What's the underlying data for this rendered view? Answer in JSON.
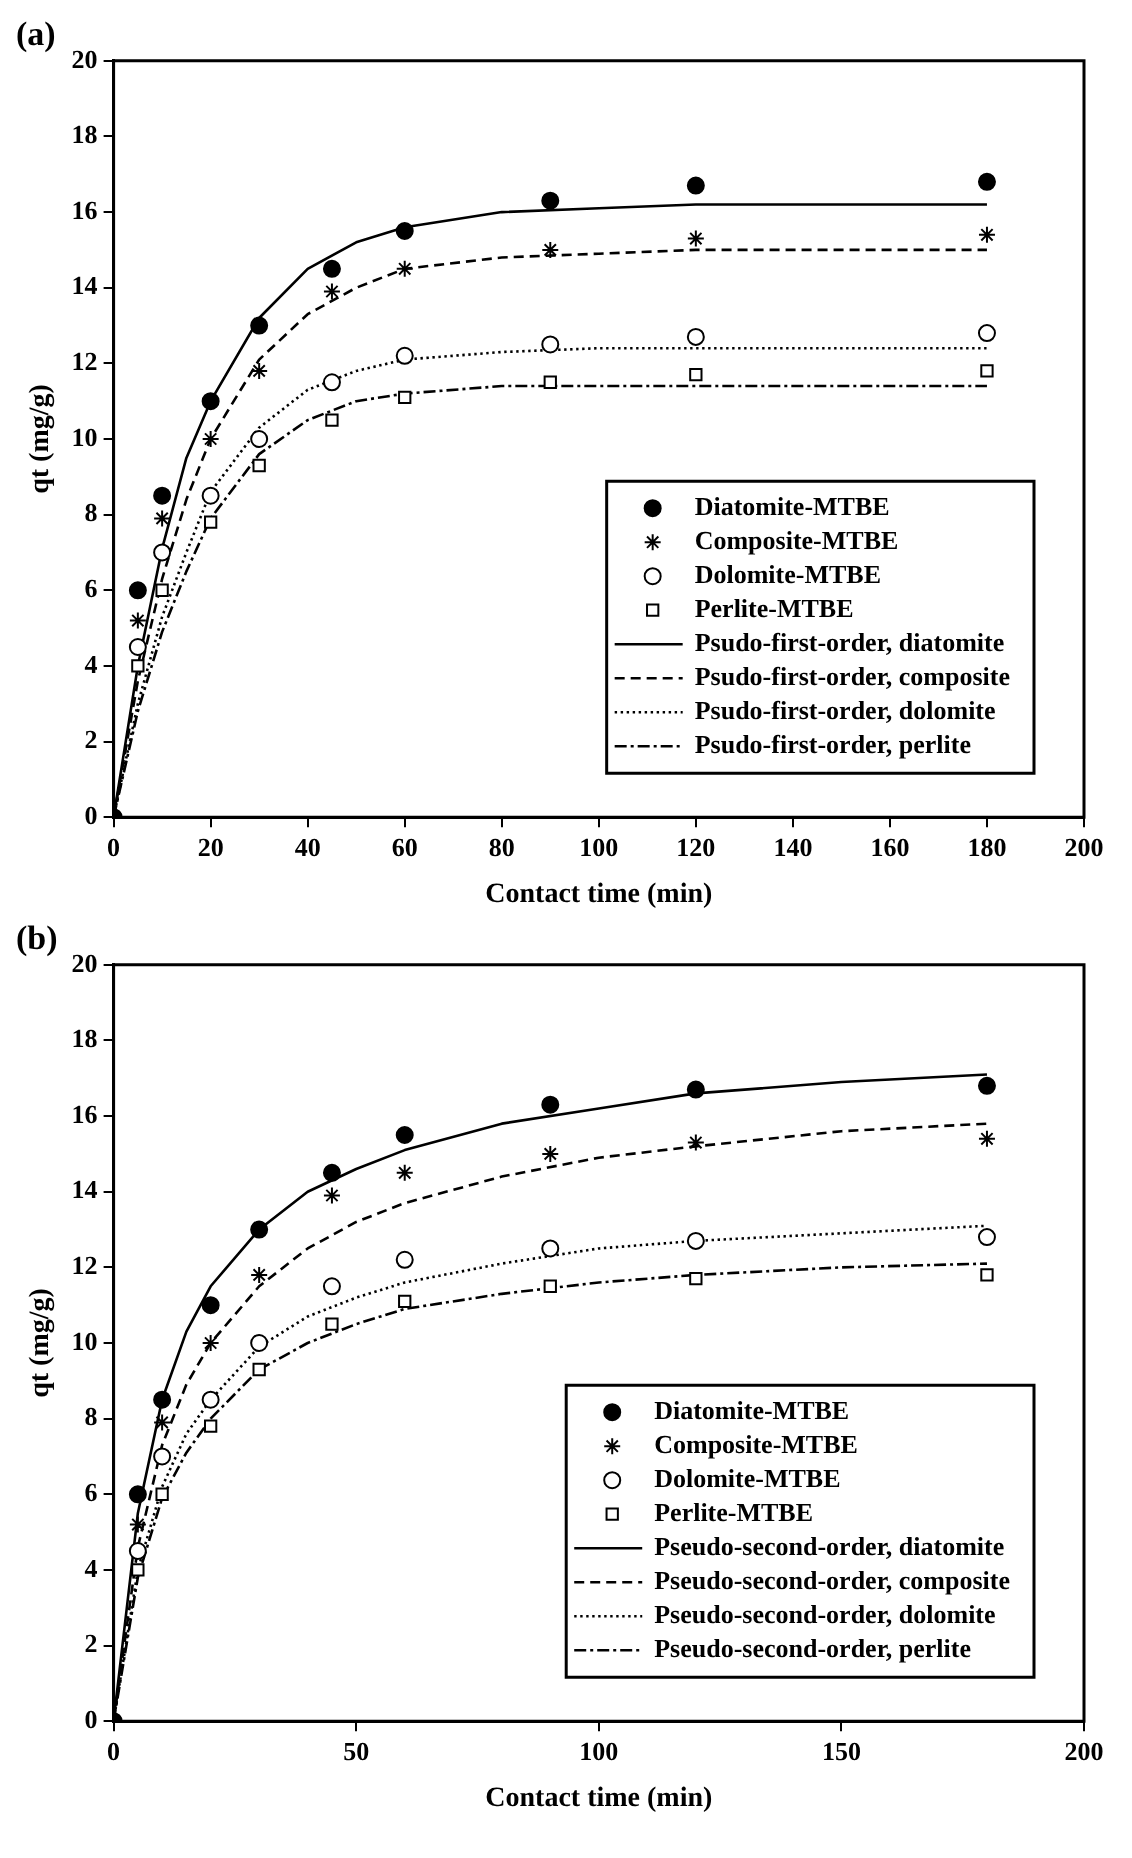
{
  "chart_data": [
    {
      "type": "line",
      "title": "(a)",
      "xlabel": "Contact time (min)",
      "ylabel": "qt (mg/g)",
      "xlim": [
        0,
        200
      ],
      "xticks": [
        0,
        20,
        40,
        60,
        80,
        100,
        120,
        140,
        160,
        180,
        200
      ],
      "ylim": [
        0,
        20
      ],
      "yticks": [
        0,
        2,
        4,
        6,
        8,
        10,
        12,
        14,
        16,
        18,
        20
      ],
      "grid": false,
      "legend": "bottom right",
      "series": [
        {
          "name": "Diatomite-MTBE",
          "type": "scatter",
          "marker": "circle",
          "color": "#000000",
          "x": [
            0,
            5,
            10,
            20,
            30,
            45,
            60,
            90,
            120,
            180
          ],
          "values": [
            0,
            6,
            8.5,
            11,
            13,
            14.5,
            15.5,
            16.3,
            16.7,
            16.8
          ]
        },
        {
          "name": "Composite-MTBE",
          "type": "scatter",
          "marker": "cross",
          "color": "#000000",
          "x": [
            5,
            10,
            20,
            30,
            45,
            60,
            90,
            120,
            180
          ],
          "values": [
            5.2,
            7.9,
            10,
            11.8,
            13.9,
            14.5,
            15,
            15.3,
            15.4
          ]
        },
        {
          "name": "Dolomite-MTBE",
          "type": "scatter",
          "marker": "circle",
          "color": "#000000",
          "x": [
            5,
            10,
            20,
            30,
            45,
            60,
            90,
            120,
            180
          ],
          "values": [
            4.5,
            7,
            8.5,
            10,
            11.5,
            12.2,
            12.5,
            12.7,
            12.8
          ]
        },
        {
          "name": "Perlite-MTBE",
          "type": "scatter",
          "marker": "square",
          "color": "#000000",
          "x": [
            5,
            10,
            20,
            30,
            45,
            60,
            90,
            120,
            180
          ],
          "values": [
            4,
            6,
            7.8,
            9.3,
            10.5,
            11.1,
            11.5,
            11.7,
            11.8
          ]
        },
        {
          "name": "Psudo-first-order, diatomite",
          "type": "line",
          "line_style": "solid",
          "color": "#000000",
          "x": [
            0,
            5,
            10,
            15,
            20,
            30,
            40,
            50,
            60,
            80,
            100,
            120,
            150,
            180
          ],
          "values": [
            0,
            4,
            7.1,
            9.5,
            11,
            13.2,
            14.5,
            15.2,
            15.6,
            16,
            16.1,
            16.2,
            16.2,
            16.2
          ]
        },
        {
          "name": "Psudo-first-order, composite",
          "type": "line",
          "line_style": "dashed",
          "color": "#000000",
          "x": [
            0,
            5,
            10,
            15,
            20,
            30,
            40,
            50,
            60,
            80,
            100,
            120,
            150,
            180
          ],
          "values": [
            0,
            3.6,
            6.3,
            8.4,
            10,
            12.1,
            13.3,
            14,
            14.5,
            14.8,
            14.9,
            15,
            15,
            15
          ]
        },
        {
          "name": "Psudo-first-order, dolomite",
          "type": "line",
          "line_style": "dotted",
          "color": "#000000",
          "x": [
            0,
            5,
            10,
            15,
            20,
            30,
            40,
            50,
            60,
            80,
            100,
            120,
            150,
            180
          ],
          "values": [
            0,
            3,
            5.3,
            7,
            8.6,
            10.3,
            11.3,
            11.8,
            12.1,
            12.3,
            12.4,
            12.4,
            12.4,
            12.4
          ]
        },
        {
          "name": "Psudo-first-order, perlite",
          "type": "line",
          "line_style": "dashdot",
          "color": "#000000",
          "x": [
            0,
            5,
            10,
            15,
            20,
            30,
            40,
            50,
            60,
            80,
            100,
            120,
            150,
            180
          ],
          "values": [
            0,
            2.8,
            4.9,
            6.5,
            7.9,
            9.6,
            10.5,
            11,
            11.2,
            11.4,
            11.4,
            11.4,
            11.4,
            11.4
          ]
        }
      ]
    },
    {
      "type": "line",
      "title": "(b)",
      "xlabel": "Contact time (min)",
      "ylabel": "qt (mg/g)",
      "xlim": [
        0,
        200
      ],
      "xticks": [
        0,
        50,
        100,
        150,
        200
      ],
      "ylim": [
        0,
        20
      ],
      "yticks": [
        0,
        2,
        4,
        6,
        8,
        10,
        12,
        14,
        16,
        18,
        20
      ],
      "grid": false,
      "legend": "bottom right",
      "series": [
        {
          "name": "Diatomite-MTBE",
          "type": "scatter",
          "marker": "circle",
          "color": "#000000",
          "x": [
            0,
            5,
            10,
            20,
            30,
            45,
            60,
            90,
            120,
            180
          ],
          "values": [
            0,
            6,
            8.5,
            11,
            13,
            14.5,
            15.5,
            16.3,
            16.7,
            16.8
          ]
        },
        {
          "name": "Composite-MTBE",
          "type": "scatter",
          "marker": "cross",
          "color": "#000000",
          "x": [
            5,
            10,
            20,
            30,
            45,
            60,
            90,
            120,
            180
          ],
          "values": [
            5.2,
            7.9,
            10,
            11.8,
            13.9,
            14.5,
            15,
            15.3,
            15.4
          ]
        },
        {
          "name": "Dolomite-MTBE",
          "type": "scatter",
          "marker": "circle",
          "color": "#000000",
          "x": [
            5,
            10,
            20,
            30,
            45,
            60,
            90,
            120,
            180
          ],
          "values": [
            4.5,
            7,
            8.5,
            10,
            11.5,
            12.2,
            12.5,
            12.7,
            12.8
          ]
        },
        {
          "name": "Perlite-MTBE",
          "type": "scatter",
          "marker": "square",
          "color": "#000000",
          "x": [
            5,
            10,
            20,
            30,
            45,
            60,
            90,
            120,
            180
          ],
          "values": [
            4,
            6,
            7.8,
            9.3,
            10.5,
            11.1,
            11.5,
            11.7,
            11.8
          ]
        },
        {
          "name": "Pseudo-second-order, diatomite",
          "type": "line",
          "line_style": "solid",
          "color": "#000000",
          "x": [
            0,
            5,
            10,
            15,
            20,
            30,
            40,
            50,
            60,
            80,
            100,
            120,
            150,
            180
          ],
          "values": [
            0,
            5.5,
            8.5,
            10.3,
            11.5,
            13,
            14,
            14.6,
            15.1,
            15.8,
            16.2,
            16.6,
            16.9,
            17.1
          ]
        },
        {
          "name": "Pseudo-second-order, composite",
          "type": "line",
          "line_style": "dashed",
          "color": "#000000",
          "x": [
            0,
            5,
            10,
            15,
            20,
            30,
            40,
            50,
            60,
            80,
            100,
            120,
            150,
            180
          ],
          "values": [
            0,
            4.6,
            7.3,
            8.9,
            10,
            11.5,
            12.5,
            13.2,
            13.7,
            14.4,
            14.9,
            15.2,
            15.6,
            15.8
          ]
        },
        {
          "name": "Pseudo-second-order, dolomite",
          "type": "line",
          "line_style": "dotted",
          "color": "#000000",
          "x": [
            0,
            5,
            10,
            15,
            20,
            30,
            40,
            50,
            60,
            80,
            100,
            120,
            150,
            180
          ],
          "values": [
            0,
            4,
            6.2,
            7.6,
            8.5,
            9.9,
            10.7,
            11.2,
            11.6,
            12.1,
            12.5,
            12.7,
            12.9,
            13.1
          ]
        },
        {
          "name": "Pseudo-second-order, perlite",
          "type": "line",
          "line_style": "dashdot",
          "color": "#000000",
          "x": [
            0,
            5,
            10,
            15,
            20,
            30,
            40,
            50,
            60,
            80,
            100,
            120,
            150,
            180
          ],
          "values": [
            0,
            3.8,
            5.9,
            7.1,
            8,
            9.3,
            10,
            10.5,
            10.9,
            11.3,
            11.6,
            11.8,
            12,
            12.1
          ]
        }
      ]
    }
  ]
}
